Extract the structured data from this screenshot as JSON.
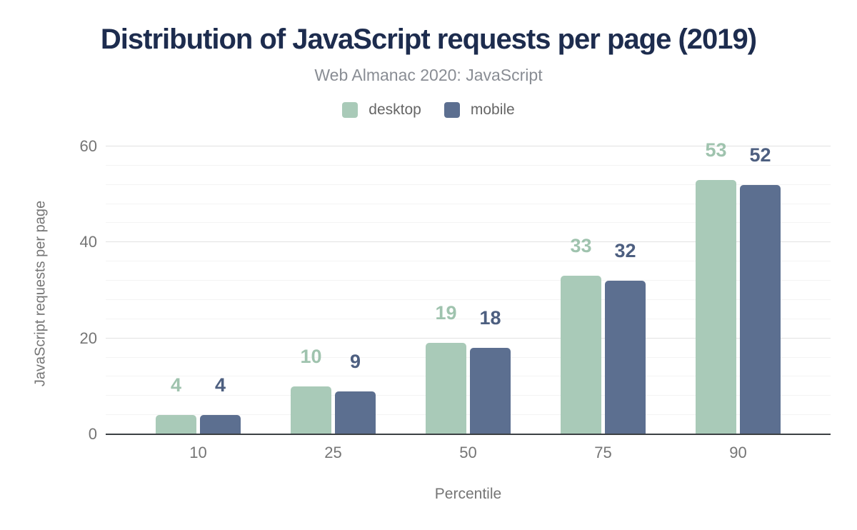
{
  "chart_data": {
    "type": "bar",
    "title": "Distribution of JavaScript requests per page (2019)",
    "subtitle": "Web Almanac 2020: JavaScript",
    "xlabel": "Percentile",
    "ylabel": "JavaScript requests per page",
    "categories": [
      "10",
      "25",
      "50",
      "75",
      "90"
    ],
    "series": [
      {
        "name": "desktop",
        "values": [
          4,
          10,
          19,
          33,
          53
        ],
        "color": "#a9cab8",
        "label_color": "#9fc3ae"
      },
      {
        "name": "mobile",
        "values": [
          4,
          9,
          18,
          32,
          52
        ],
        "color": "#5c6f90",
        "label_color": "#4d5f80"
      }
    ],
    "ylim": [
      0,
      60
    ],
    "y_ticks": [
      0,
      20,
      40,
      60
    ],
    "y_minor_step": 4,
    "grid": true,
    "legend_position": "top"
  },
  "colors": {
    "title": "#1d2c4e",
    "subtitle": "#898d94",
    "legend_text": "#666666",
    "tick_text": "#757575",
    "grid_major": "#e2e2e2",
    "grid_minor": "#f4f4f4",
    "axis_line": "#3c4043",
    "background": "#ffffff"
  }
}
